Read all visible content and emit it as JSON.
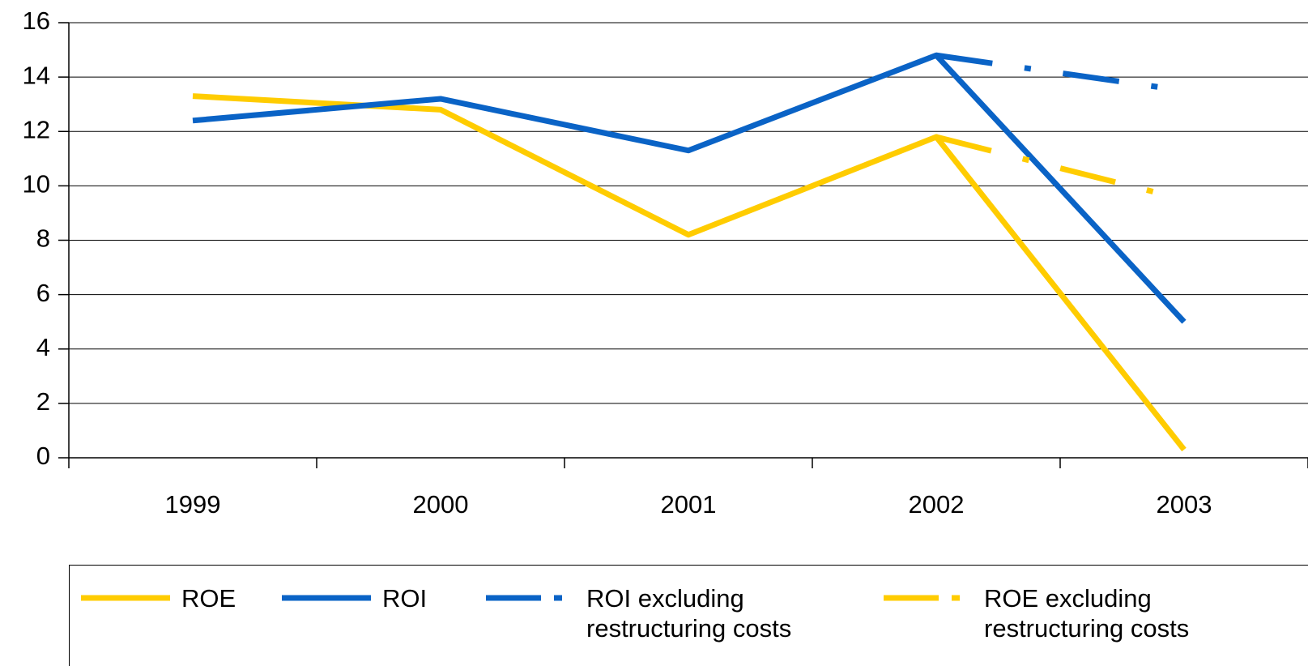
{
  "chart_data": {
    "type": "line",
    "categories": [
      "1999",
      "2000",
      "2001",
      "2002",
      "2003"
    ],
    "series": [
      {
        "name": "ROE",
        "color": "#ffcc00",
        "dash": false,
        "values": [
          13.3,
          12.8,
          8.2,
          11.8,
          0.3
        ]
      },
      {
        "name": "ROI",
        "color": "#0a63c6",
        "dash": false,
        "values": [
          12.4,
          13.2,
          11.3,
          14.8,
          5.0
        ]
      },
      {
        "name": "ROI excluding restructuring costs",
        "color": "#0a63c6",
        "dash": true,
        "values": [
          null,
          null,
          null,
          14.8,
          13.5
        ]
      },
      {
        "name": "ROE excluding restructuring costs",
        "color": "#ffcc00",
        "dash": true,
        "values": [
          null,
          null,
          null,
          11.8,
          9.5
        ]
      }
    ],
    "ylim": [
      0,
      16
    ],
    "yticks": [
      0,
      2,
      4,
      6,
      8,
      10,
      12,
      14,
      16
    ],
    "grid": true
  }
}
